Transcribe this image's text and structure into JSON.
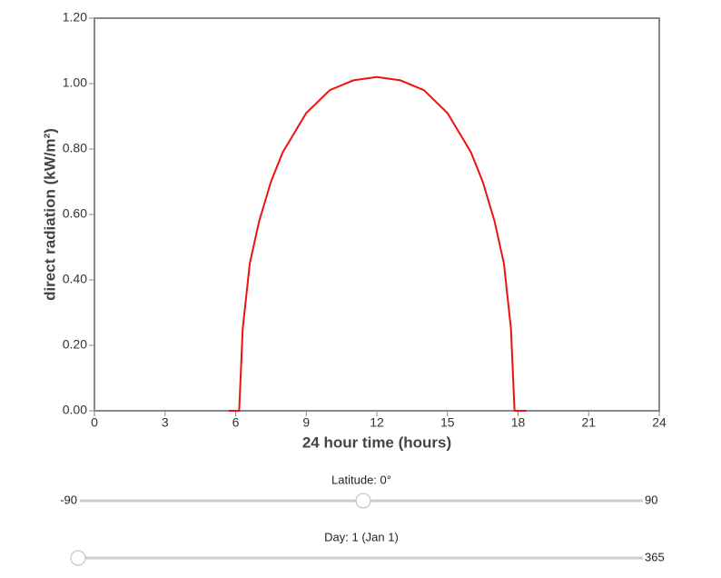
{
  "chart_data": {
    "type": "line",
    "x_label": "24 hour time (hours)",
    "y_label": "direct radiation (kW/m²)",
    "x": [
      5.7,
      6.15,
      6.3,
      6.6,
      7,
      7.5,
      8,
      9,
      10,
      11,
      12,
      13,
      14,
      15,
      16,
      16.5,
      17,
      17.4,
      17.7,
      17.85,
      18.35
    ],
    "values": [
      0,
      0,
      0.25,
      0.45,
      0.58,
      0.7,
      0.79,
      0.91,
      0.98,
      1.01,
      1.02,
      1.01,
      0.98,
      0.91,
      0.79,
      0.7,
      0.58,
      0.45,
      0.25,
      0,
      0
    ],
    "color": "#ee1111",
    "xlim": [
      0,
      24
    ],
    "xticks": [
      0,
      3,
      6,
      9,
      12,
      15,
      18,
      21,
      24
    ],
    "ylim": [
      0,
      1.2
    ],
    "yticks": [
      {
        "value": 0,
        "label": "0.00"
      },
      {
        "value": 0.2,
        "label": "0.20"
      },
      {
        "value": 0.4,
        "label": "0.40"
      },
      {
        "value": 0.6,
        "label": "0.60"
      },
      {
        "value": 0.8,
        "label": "0.80"
      },
      {
        "value": 1,
        "label": "1.00"
      },
      {
        "value": 1.2,
        "label": "1.20"
      }
    ]
  },
  "sliders": [
    {
      "label": "Latitude: 0°",
      "min": -90,
      "max": 90,
      "value": 0
    },
    {
      "label": "Day: 1 (Jan 1)",
      "min": 1,
      "max": 365,
      "value": 1
    }
  ]
}
